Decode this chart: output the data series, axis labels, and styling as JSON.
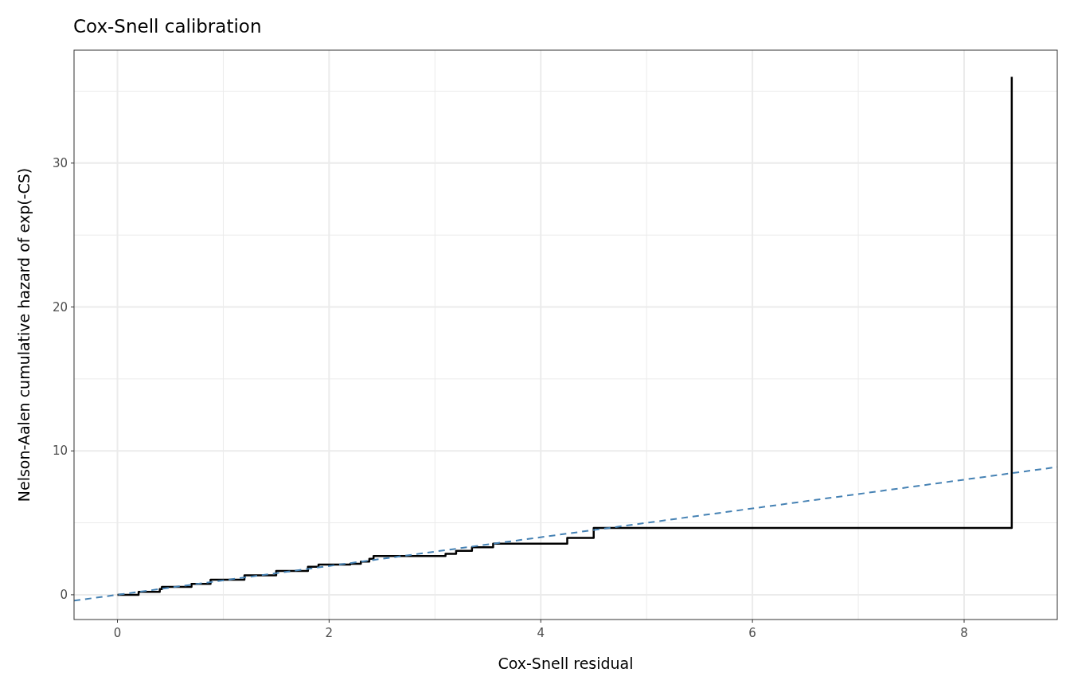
{
  "chart_data": {
    "type": "step",
    "title": "Cox-Snell calibration",
    "xlabel": "Cox-Snell residual",
    "ylabel": "Nelson-Aalen cumulative hazard of exp(-CS)",
    "xlim": [
      -0.41,
      8.88
    ],
    "ylim": [
      -1.72,
      37.85
    ],
    "xticks": [
      0,
      {
        "value": 1,
        "label": null
      },
      2,
      {
        "value": 3,
        "label": null
      },
      4,
      {
        "value": 5,
        "label": null
      },
      6,
      {
        "value": 7,
        "label": null
      },
      8
    ],
    "yticks": [
      0,
      {
        "value": 5,
        "label": null
      },
      10,
      {
        "value": 15,
        "label": null
      },
      20,
      {
        "value": 25,
        "label": null
      },
      30,
      {
        "value": 35,
        "label": null
      }
    ],
    "grid": true,
    "marker": "none",
    "series": [
      {
        "color": "#000000",
        "line_style": "solid",
        "x": [
          0,
          0.2,
          0.4,
          0.42,
          0.7,
          0.88,
          1.2,
          1.5,
          1.8,
          1.9,
          2.2,
          2.3,
          2.38,
          2.42,
          3.1,
          3.2,
          3.35,
          3.55,
          4.25,
          4.5,
          8.45
        ],
        "values": [
          0,
          0.2,
          0.4,
          0.55,
          0.75,
          1.05,
          1.35,
          1.65,
          1.95,
          2.1,
          2.15,
          2.3,
          2.5,
          2.7,
          2.85,
          3.05,
          3.3,
          3.55,
          3.95,
          4.65,
          36
        ]
      },
      {
        "type": "line",
        "color": "#4682b4",
        "line_style": "dashed",
        "x": [
          -0.41,
          8.88
        ],
        "values": [
          -0.41,
          8.88
        ]
      }
    ]
  }
}
